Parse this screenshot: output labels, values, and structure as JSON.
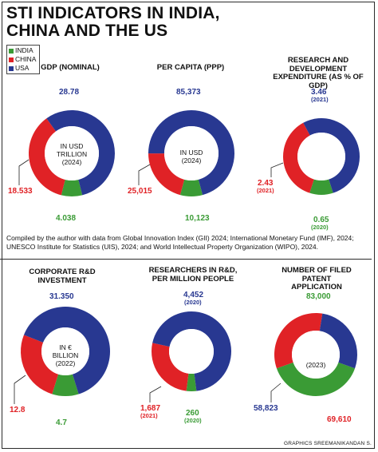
{
  "title_lines": [
    "STI INDICATORS IN INDIA,",
    "CHINA AND THE US"
  ],
  "legend": [
    {
      "name": "INDIA",
      "color": "#3a9b35"
    },
    {
      "name": "CHINA",
      "color": "#e02226"
    },
    {
      "name": "USA",
      "color": "#283891"
    }
  ],
  "note": "Compiled by the author with data from Global Innovation Index (GII) 2024; International Monetary Fund (IMF), 2024; UNESCO Institute for Statistics (UIS), 2024; and World Intellectual Property Organization (WIPO), 2024.",
  "credit": "GRAPHICS SREEMANIKANDAN S.",
  "center_texts": {
    "gdp": [
      "IN USD",
      "TRILLION",
      "(2024)"
    ],
    "per_capita": [
      "IN USD",
      "(2024)"
    ],
    "corporate": [
      "IN €",
      "BILLION",
      "(2022)"
    ],
    "patents": [
      "(2023)"
    ]
  },
  "label_texts": {
    "gdp_usa": "28.78",
    "gdp_china": "18.533",
    "gdp_india": "4.038",
    "pc_usa": "85,373",
    "pc_china": "25,015",
    "pc_india": "10,123",
    "rd_usa": "3.46",
    "rd_usa_year": "(2021)",
    "rd_china": "2.43",
    "rd_china_year": "(2021)",
    "rd_india": "0.65",
    "rd_india_year": "(2020)",
    "corp_usa": "31.350",
    "corp_china": "12.8",
    "corp_india": "4.7",
    "res_usa": "4,452",
    "res_usa_year": "(2020)",
    "res_china": "1,687",
    "res_china_year": "(2021)",
    "res_india": "260",
    "res_india_year": "(2020)",
    "pat_india": "83,000",
    "pat_usa": "58,823",
    "pat_china": "69,610"
  },
  "chart_data": [
    {
      "type": "pie",
      "title": "GDP (NOMINAL)",
      "unit": "IN USD TRILLION (2024)",
      "categories": [
        "INDIA",
        "CHINA",
        "USA"
      ],
      "values": [
        4.038,
        18.533,
        28.78
      ]
    },
    {
      "type": "pie",
      "title": "PER CAPITA (PPP)",
      "unit": "IN USD (2024)",
      "categories": [
        "INDIA",
        "CHINA",
        "USA"
      ],
      "values": [
        10123,
        25015,
        85373
      ]
    },
    {
      "type": "pie",
      "title": "RESEARCH AND DEVELOPMENT EXPENDITURE (AS % OF GDP)",
      "categories": [
        "INDIA",
        "CHINA",
        "USA"
      ],
      "values": [
        0.65,
        2.43,
        3.46
      ],
      "years": [
        "(2020)",
        "(2021)",
        "(2021)"
      ]
    },
    {
      "type": "pie",
      "title": "CORPORATE R&D INVESTMENT",
      "unit": "IN € BILLION (2022)",
      "categories": [
        "INDIA",
        "CHINA",
        "USA"
      ],
      "values": [
        4.7,
        12.8,
        31.35
      ]
    },
    {
      "type": "pie",
      "title": "RESEARCHERS IN R&D, PER MILLION PEOPLE",
      "categories": [
        "INDIA",
        "CHINA",
        "USA"
      ],
      "values": [
        260,
        1687,
        4452
      ],
      "years": [
        "(2020)",
        "(2021)",
        "(2020)"
      ]
    },
    {
      "type": "pie",
      "title": "NUMBER OF FILED PATENT APPLICATION",
      "unit": "(2023)",
      "categories": [
        "INDIA",
        "CHINA",
        "USA"
      ],
      "values": [
        83000,
        69610,
        58823
      ]
    }
  ]
}
